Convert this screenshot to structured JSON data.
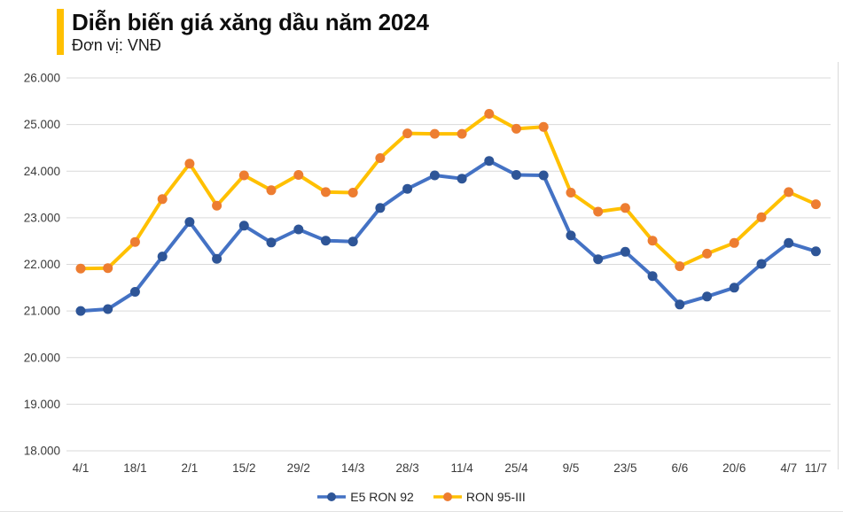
{
  "header": {
    "title": "Diễn biến giá xăng dầu năm 2024",
    "subtitle": "Đơn vị: VNĐ",
    "accent_color": "#FFC000"
  },
  "chart_data": {
    "type": "line",
    "title": "Diễn biến giá xăng dầu năm 2024",
    "unit_label": "Đơn vị: VNĐ",
    "ylim": [
      18000,
      26000
    ],
    "grid": true,
    "grid_color": "#D9D9D9",
    "legend_position": "bottom",
    "y_tick_labels": [
      "26.000",
      "25.000",
      "24.000",
      "23.000",
      "22.000",
      "21.000",
      "20.000",
      "19.000",
      "18.000"
    ],
    "x_ticks": [
      {
        "label": "4/1",
        "i": 0
      },
      {
        "label": "18/1",
        "i": 2
      },
      {
        "label": "2/1",
        "i": 4
      },
      {
        "label": "15/2",
        "i": 6
      },
      {
        "label": "29/2",
        "i": 8
      },
      {
        "label": "14/3",
        "i": 10
      },
      {
        "label": "28/3",
        "i": 12
      },
      {
        "label": "11/4",
        "i": 14
      },
      {
        "label": "25/4",
        "i": 16
      },
      {
        "label": "9/5",
        "i": 18
      },
      {
        "label": "23/5",
        "i": 20
      },
      {
        "label": "6/6",
        "i": 22
      },
      {
        "label": "20/6",
        "i": 24
      },
      {
        "label": "4/7",
        "i": 26
      },
      {
        "label": "11/7",
        "i": 27
      }
    ],
    "series": [
      {
        "name": "E5 RON 92",
        "line_color": "#4472C4",
        "marker_color": "#2E5597",
        "values": [
          21000,
          21040,
          21410,
          22170,
          22910,
          22120,
          22830,
          22470,
          22750,
          22510,
          22490,
          23210,
          23620,
          23910,
          23840,
          24220,
          23920,
          23910,
          22620,
          22110,
          22270,
          21750,
          21140,
          21310,
          21500,
          22010,
          22460,
          22280
        ]
      },
      {
        "name": "RON 95-III",
        "line_color": "#FFC000",
        "marker_color": "#ED7D31",
        "values": [
          21910,
          21920,
          22480,
          23400,
          24160,
          23260,
          23910,
          23590,
          23920,
          23550,
          23540,
          24280,
          24810,
          24800,
          24800,
          25230,
          24910,
          24950,
          23540,
          23130,
          23210,
          22510,
          21960,
          22230,
          22460,
          23010,
          23550,
          23290
        ]
      }
    ]
  }
}
